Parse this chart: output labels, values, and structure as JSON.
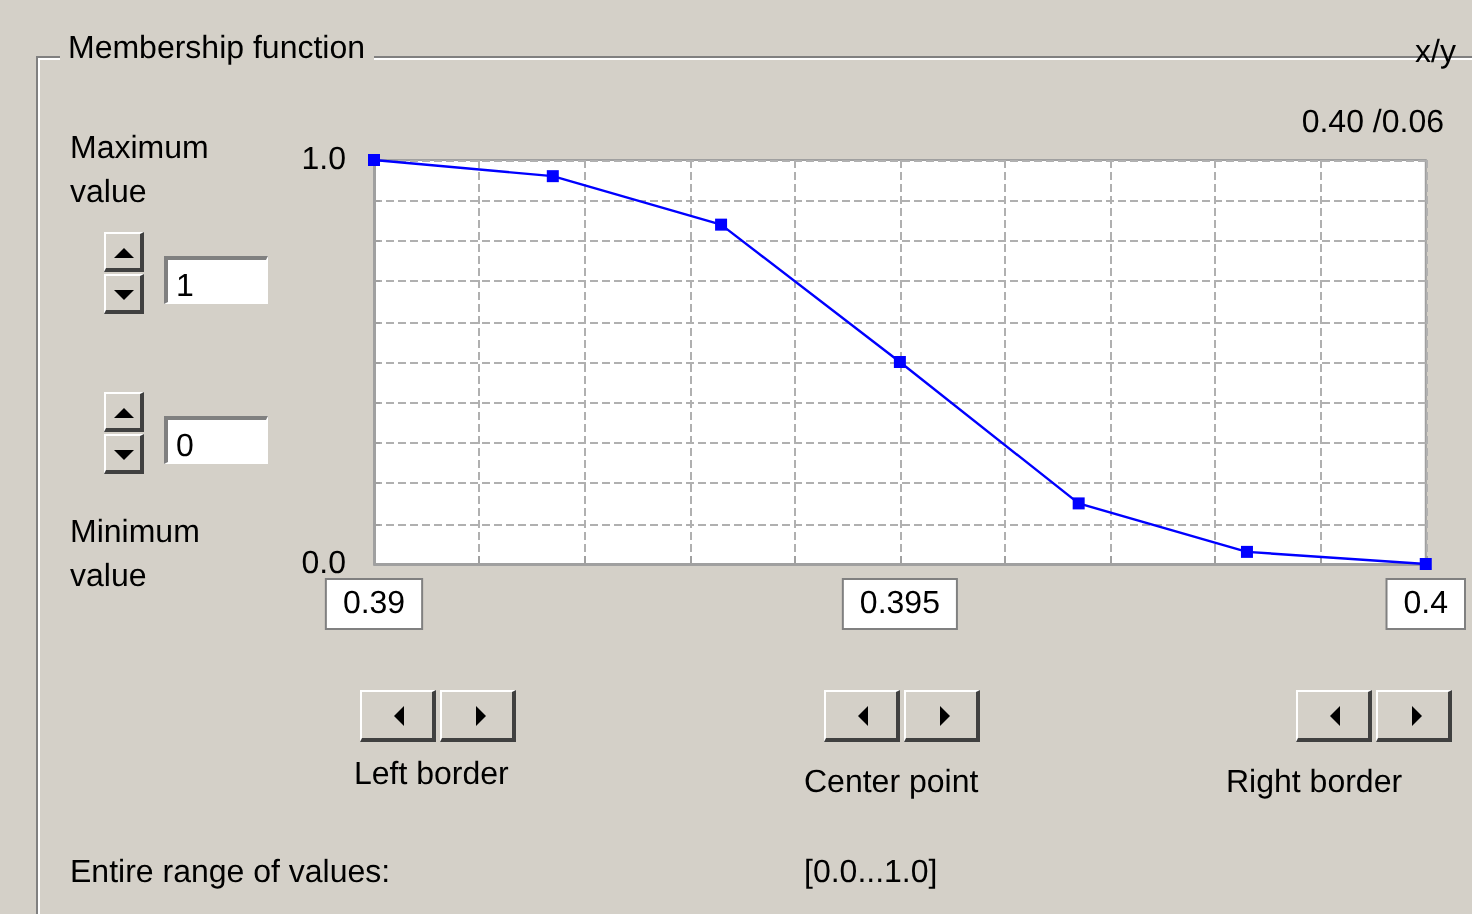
{
  "chart_data": {
    "type": "line",
    "title": "Membership function",
    "annotations": [
      "x/y",
      "0.40 /0.06",
      "Maximum value",
      "1",
      "0",
      "Minimum value",
      "Left border",
      "Center point",
      "Right border",
      "Entire range of values:",
      "[0.0...1.0]"
    ],
    "x": [
      0.39,
      0.3917,
      0.3933,
      0.395,
      0.3967,
      0.3983,
      0.4
    ],
    "series": [
      {
        "color": "#0000ff",
        "values": [
          1,
          0.96,
          0.84,
          0.5,
          0.15,
          0.03,
          0
        ]
      }
    ],
    "xlim": [
      0.39,
      0.4
    ],
    "xticks": [
      0.39,
      {
        "value": 0.391,
        "label": null
      },
      {
        "value": 0.392,
        "label": null
      },
      {
        "value": 0.393,
        "label": null
      },
      {
        "value": 0.394,
        "label": null
      },
      0.395,
      {
        "value": 0.396,
        "label": null
      },
      {
        "value": 0.397,
        "label": null
      },
      {
        "value": 0.398,
        "label": null
      },
      {
        "value": 0.399,
        "label": null
      },
      0.4
    ],
    "ylim": [
      0,
      1
    ],
    "yticks": [
      {
        "value": 0,
        "label": "0.0"
      },
      {
        "value": 0.1,
        "label": null
      },
      {
        "value": 0.2,
        "label": null
      },
      {
        "value": 0.3,
        "label": null
      },
      {
        "value": 0.4,
        "label": null
      },
      {
        "value": 0.5,
        "label": null
      },
      {
        "value": 0.6,
        "label": null
      },
      {
        "value": 0.7,
        "label": null
      },
      {
        "value": 0.8,
        "label": null
      },
      {
        "value": 0.9,
        "label": null
      },
      {
        "value": 1,
        "label": "1.0"
      }
    ],
    "grid": true,
    "marker": "square",
    "line_style": "solid"
  }
}
